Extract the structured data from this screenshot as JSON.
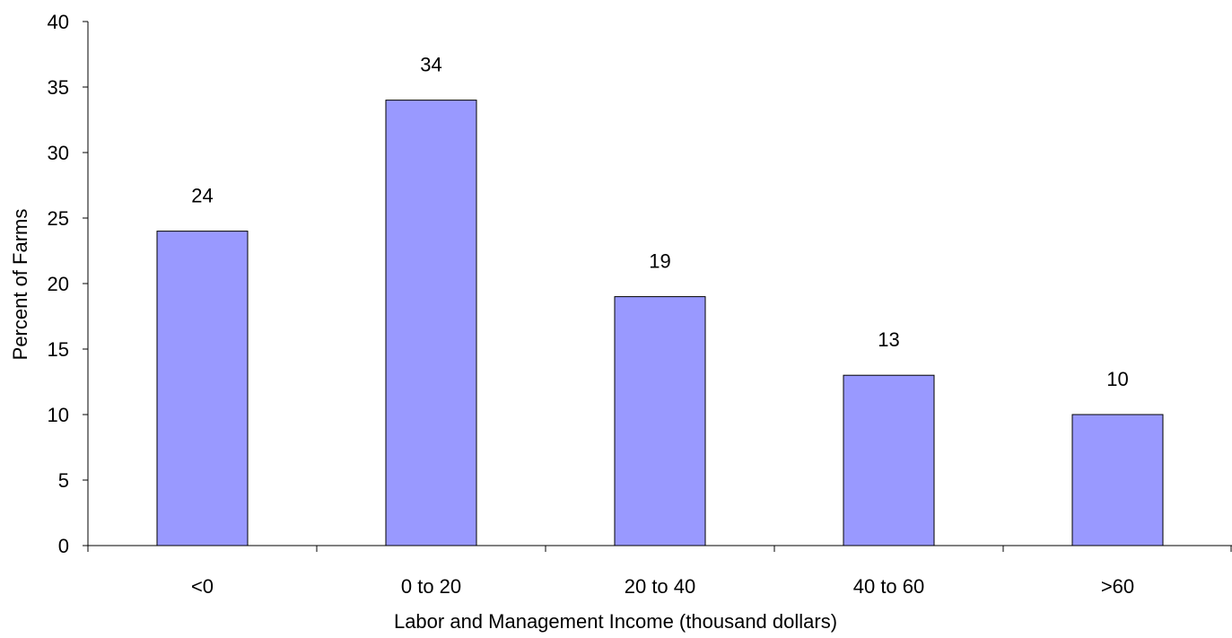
{
  "chart_data": {
    "type": "bar",
    "categories": [
      "<0",
      "0 to 20",
      "20 to 40",
      "40 to 60",
      ">60"
    ],
    "series": [
      {
        "values": [
          24,
          34,
          19,
          13,
          10
        ],
        "color": "#9999ff"
      }
    ],
    "data_labels": [
      "24",
      "34",
      "19",
      "13",
      "10"
    ],
    "title": "",
    "xlabel": "Labor and Management Income (thousand dollars)",
    "ylabel": "Percent of Farms",
    "ylim": [
      0,
      40
    ],
    "yticks": [
      0,
      5,
      10,
      15,
      20,
      25,
      30,
      35,
      40
    ],
    "grid": false,
    "legend": "none",
    "bar_color": "#9999ff",
    "bar_edge_color": "#000000"
  }
}
